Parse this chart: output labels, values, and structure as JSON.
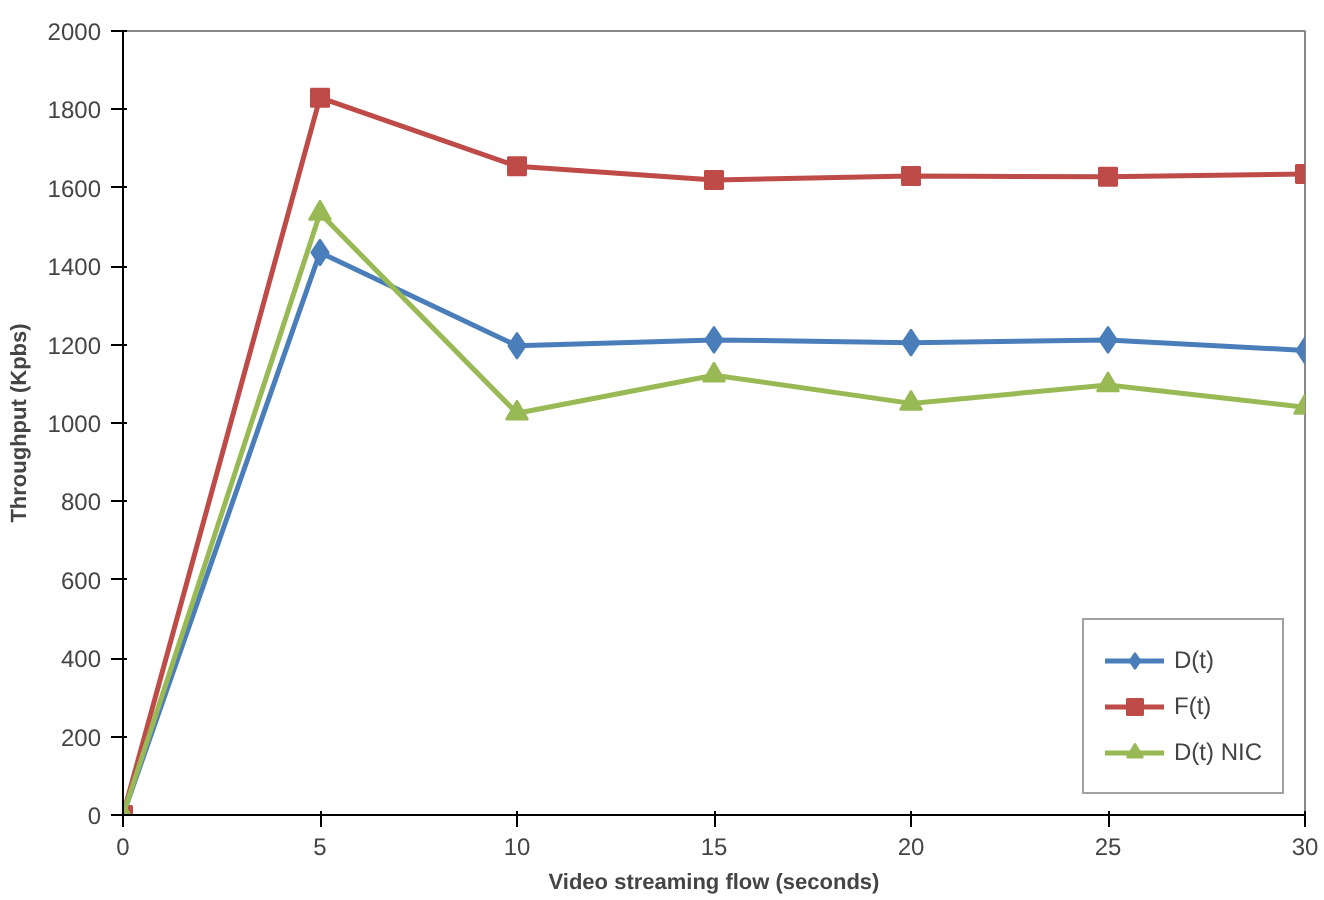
{
  "chart_data": {
    "type": "line",
    "xlabel": "Video streaming flow (seconds)",
    "ylabel": "Throughput (Kpbs)",
    "x": [
      0,
      5,
      10,
      15,
      20,
      25,
      30
    ],
    "xlim": [
      0,
      30
    ],
    "xticks": [
      0,
      5,
      10,
      15,
      20,
      25,
      30
    ],
    "ylim": [
      0,
      2000
    ],
    "yticks": [
      0,
      200,
      400,
      600,
      800,
      1000,
      1200,
      1400,
      1600,
      1800,
      2000
    ],
    "grid": false,
    "legend": "bottom right",
    "series": [
      {
        "name": "D(t)",
        "color": "#4a7ebb",
        "marker": "diamond",
        "values": [
          0,
          1435,
          1197,
          1212,
          1205,
          1212,
          1185
        ]
      },
      {
        "name": "F(t)",
        "color": "#be4b48",
        "marker": "square",
        "values": [
          0,
          1830,
          1655,
          1620,
          1630,
          1628,
          1635
        ]
      },
      {
        "name": "D(t) NIC",
        "color": "#98b954",
        "marker": "triangle",
        "values": [
          0,
          1535,
          1025,
          1122,
          1050,
          1097,
          1040
        ]
      }
    ]
  }
}
